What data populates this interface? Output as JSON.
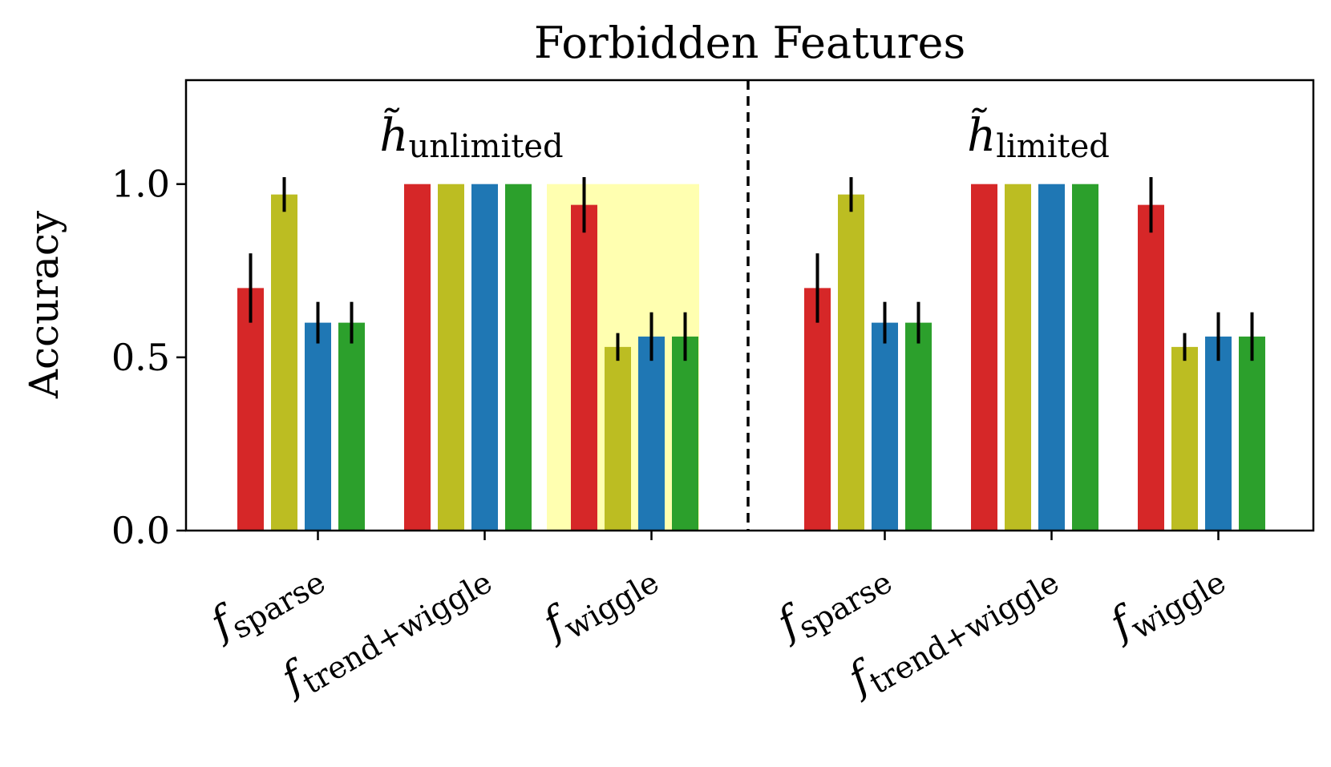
{
  "chart_data": {
    "type": "bar",
    "title": "Forbidden Features",
    "ylabel": "Accuracy",
    "ylim": [
      0,
      1.3
    ],
    "yticks": [
      {
        "value": 0.0,
        "label": "0.0"
      },
      {
        "value": 0.5,
        "label": "0.5"
      },
      {
        "value": 1.0,
        "label": "1.0"
      }
    ],
    "series_colors": [
      "#d62728",
      "#bcbd22",
      "#1f77b4",
      "#2ca02c"
    ],
    "highlight_color": "#ffffb0",
    "panels": [
      {
        "label_main": "h̃",
        "label_sub": "unlimited",
        "highlight_category": 2,
        "groups": [
          {
            "label_main": "f",
            "label_sub": "sparse",
            "values": [
              0.7,
              0.97,
              0.6,
              0.6
            ],
            "errors": [
              0.1,
              0.05,
              0.06,
              0.06
            ]
          },
          {
            "label_main": "f",
            "label_sub": "trend+wiggle",
            "values": [
              1.0,
              1.0,
              1.0,
              1.0
            ],
            "errors": [
              0,
              0,
              0,
              0
            ]
          },
          {
            "label_main": "f",
            "label_sub": "wiggle",
            "values": [
              0.94,
              0.53,
              0.56,
              0.56
            ],
            "errors": [
              0.08,
              0.04,
              0.07,
              0.07
            ]
          }
        ]
      },
      {
        "label_main": "h̃",
        "label_sub": "limited",
        "highlight_category": null,
        "groups": [
          {
            "label_main": "f",
            "label_sub": "sparse",
            "values": [
              0.7,
              0.97,
              0.6,
              0.6
            ],
            "errors": [
              0.1,
              0.05,
              0.06,
              0.06
            ]
          },
          {
            "label_main": "f",
            "label_sub": "trend+wiggle",
            "values": [
              1.0,
              1.0,
              1.0,
              1.0
            ],
            "errors": [
              0,
              0,
              0,
              0
            ]
          },
          {
            "label_main": "f",
            "label_sub": "wiggle",
            "values": [
              0.94,
              0.53,
              0.56,
              0.56
            ],
            "errors": [
              0.08,
              0.04,
              0.07,
              0.07
            ]
          }
        ]
      }
    ]
  }
}
